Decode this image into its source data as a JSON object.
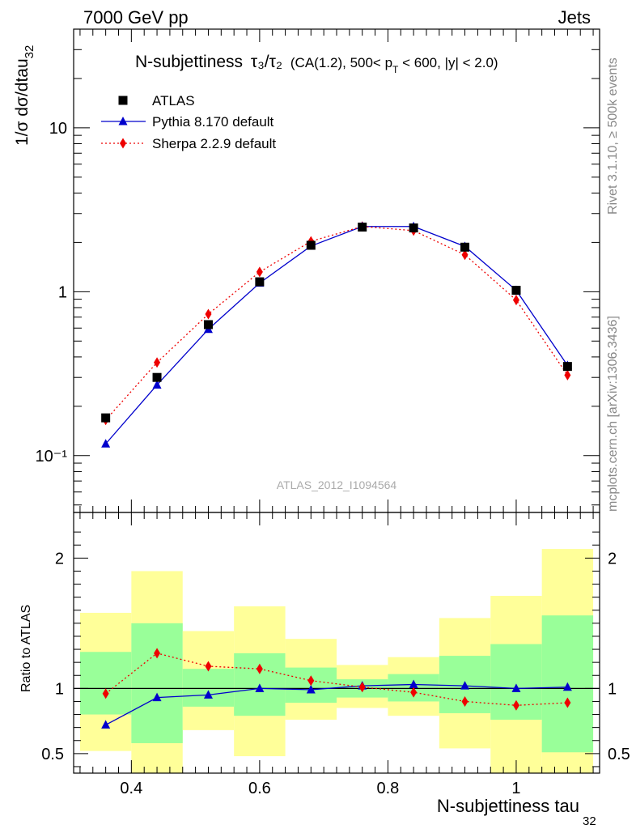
{
  "header": {
    "energy": "7000 GeV pp",
    "process": "Jets"
  },
  "side_text": {
    "rivet": "Rivet 3.1.10, ≥ 500k events",
    "source": "mcplots.cern.ch [arXiv:1306.3436]"
  },
  "analysis_id": "ATLAS_2012_I1094564",
  "colors": {
    "atlas": "#000000",
    "pythia": "#0000cc",
    "sherpa": "#ee0000",
    "band_inner": "#99ff99",
    "band_outer": "#ffff99"
  },
  "chart_data": [
    {
      "type": "line",
      "title": "N-subjettiness τ₃/τ₂ (CA(1.2), 500< p_T < 600, |y| < 2.0)",
      "title_parts": {
        "main": "N-subjettiness",
        "ratio": "τ₃/τ₂",
        "selection_pre": "(CA(1.2), 500< p",
        "selection_sub": "T",
        "selection_post": " < 600, |y| < 2.0)"
      },
      "ylabel": "1/σ dσ/dtau32",
      "ylabel_parts": {
        "main": "1/σ dσ/dtau",
        "sub": "32"
      },
      "yscale": "log",
      "xlim": [
        0.31,
        1.13
      ],
      "ylim": [
        0.045,
        40
      ],
      "ytick_labels": [
        "10⁻¹",
        "1",
        "10"
      ],
      "legend_position": "top-left",
      "x": [
        0.36,
        0.44,
        0.52,
        0.6,
        0.68,
        0.76,
        0.84,
        0.92,
        1.0,
        1.08
      ],
      "series": [
        {
          "name": "ATLAS",
          "marker": "square",
          "values": [
            0.17,
            0.3,
            0.63,
            1.15,
            1.92,
            2.48,
            2.45,
            1.87,
            1.02,
            0.35
          ]
        },
        {
          "name": "Pythia 8.170 default",
          "marker": "triangle",
          "line": "solid",
          "values": [
            0.118,
            0.27,
            0.59,
            1.13,
            1.9,
            2.5,
            2.5,
            1.89,
            1.02,
            0.355
          ]
        },
        {
          "name": "Sherpa 2.2.9 default",
          "marker": "diamond",
          "line": "dotted",
          "values": [
            0.165,
            0.37,
            0.73,
            1.32,
            2.03,
            2.5,
            2.36,
            1.68,
            0.89,
            0.31
          ]
        }
      ]
    },
    {
      "type": "line",
      "ylabel": "Ratio to ATLAS",
      "xlabel": "N-subjettiness tau32",
      "xlabel_parts": {
        "main": "N-subjettiness tau",
        "sub": "32"
      },
      "xlim": [
        0.31,
        1.13
      ],
      "ylim": [
        0.35,
        2.35
      ],
      "xtick_labels": [
        "0.4",
        "0.6",
        "0.8",
        "1"
      ],
      "ytick_labels": [
        "0.5",
        "1",
        "2"
      ],
      "bins": [
        [
          0.32,
          0.4
        ],
        [
          0.4,
          0.48
        ],
        [
          0.48,
          0.56
        ],
        [
          0.56,
          0.64
        ],
        [
          0.64,
          0.72
        ],
        [
          0.72,
          0.8
        ],
        [
          0.8,
          0.88
        ],
        [
          0.88,
          0.96
        ],
        [
          0.96,
          1.04
        ],
        [
          1.04,
          1.12
        ]
      ],
      "band_inner": [
        [
          0.8,
          1.28
        ],
        [
          0.58,
          1.5
        ],
        [
          0.86,
          1.15
        ],
        [
          0.79,
          1.27
        ],
        [
          0.89,
          1.16
        ],
        [
          0.93,
          1.07
        ],
        [
          0.9,
          1.11
        ],
        [
          0.81,
          1.25
        ],
        [
          0.76,
          1.34
        ],
        [
          0.51,
          1.56
        ]
      ],
      "band_outer": [
        [
          0.52,
          1.58
        ],
        [
          0.35,
          1.9
        ],
        [
          0.68,
          1.44
        ],
        [
          0.48,
          1.63
        ],
        [
          0.76,
          1.38
        ],
        [
          0.85,
          1.18
        ],
        [
          0.79,
          1.24
        ],
        [
          0.54,
          1.54
        ],
        [
          0.35,
          1.71
        ],
        [
          0.35,
          2.07
        ]
      ],
      "x": [
        0.36,
        0.44,
        0.52,
        0.6,
        0.68,
        0.76,
        0.84,
        0.92,
        1.0,
        1.08
      ],
      "series": [
        {
          "name": "Pythia 8.170 default",
          "values": [
            0.72,
            0.93,
            0.95,
            1.0,
            0.99,
            1.02,
            1.03,
            1.02,
            1.0,
            1.01
          ]
        },
        {
          "name": "Sherpa 2.2.9 default",
          "values": [
            0.96,
            1.27,
            1.17,
            1.15,
            1.06,
            1.01,
            0.97,
            0.9,
            0.87,
            0.89
          ]
        }
      ]
    }
  ]
}
